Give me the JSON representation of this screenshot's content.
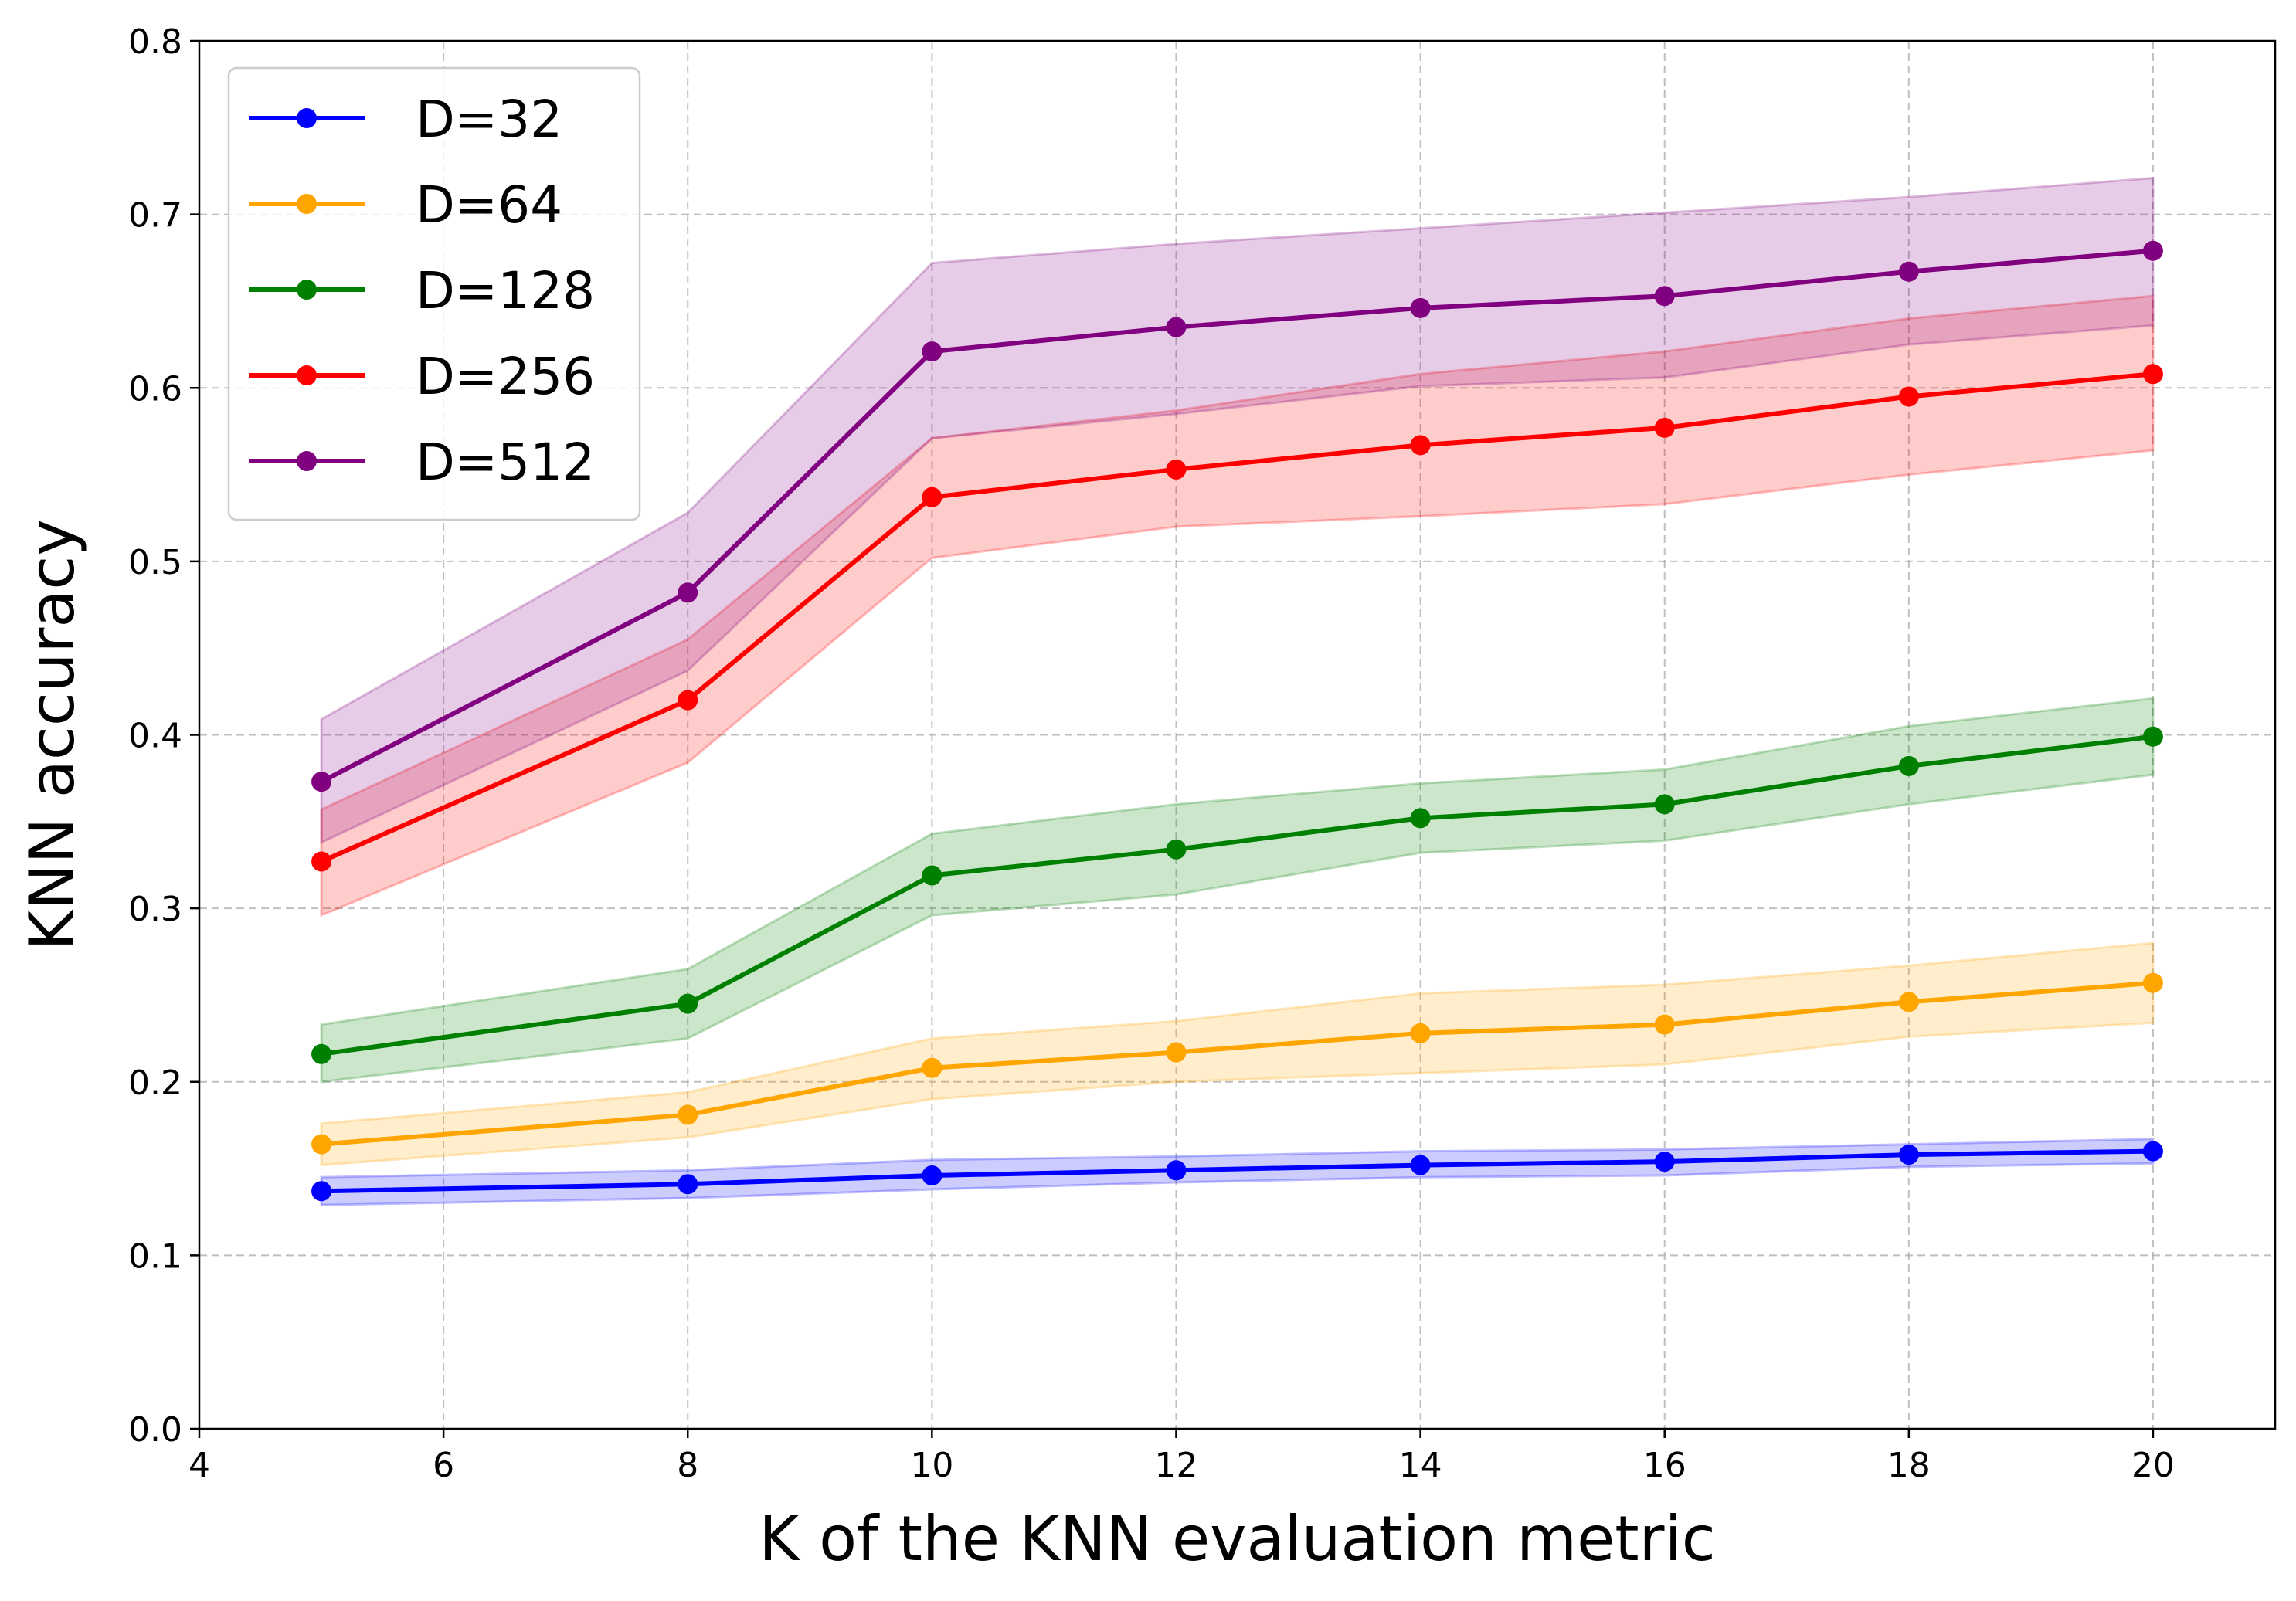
{
  "chart_data": {
    "type": "line",
    "title": "",
    "xlabel": "K of the KNN evaluation metric",
    "ylabel": "KNN accuracy",
    "xlim": [
      4,
      21
    ],
    "ylim": [
      0.0,
      0.8
    ],
    "x_ticks": [
      "4",
      "6",
      "8",
      "10",
      "12",
      "14",
      "16",
      "18",
      "20"
    ],
    "y_ticks": [
      "0.0",
      "0.1",
      "0.2",
      "0.3",
      "0.4",
      "0.5",
      "0.6",
      "0.7",
      "0.8"
    ],
    "grid": true,
    "legend_position": "top-left",
    "x": [
      5,
      8,
      10,
      12,
      14,
      16,
      18,
      20
    ],
    "series": [
      {
        "name": "D=32",
        "color": "#0000ff",
        "values": [
          0.137,
          0.141,
          0.146,
          0.149,
          0.152,
          0.154,
          0.158,
          0.16
        ],
        "lower": [
          0.129,
          0.133,
          0.138,
          0.142,
          0.145,
          0.146,
          0.151,
          0.153
        ],
        "upper": [
          0.145,
          0.149,
          0.155,
          0.157,
          0.16,
          0.161,
          0.164,
          0.167
        ]
      },
      {
        "name": "D=64",
        "color": "#ffa500",
        "values": [
          0.164,
          0.181,
          0.208,
          0.217,
          0.228,
          0.233,
          0.246,
          0.257
        ],
        "lower": [
          0.152,
          0.168,
          0.19,
          0.2,
          0.205,
          0.21,
          0.226,
          0.234
        ],
        "upper": [
          0.176,
          0.194,
          0.225,
          0.235,
          0.251,
          0.256,
          0.267,
          0.28
        ]
      },
      {
        "name": "D=128",
        "color": "#008000",
        "values": [
          0.216,
          0.245,
          0.319,
          0.334,
          0.352,
          0.36,
          0.382,
          0.399
        ],
        "lower": [
          0.2,
          0.225,
          0.296,
          0.308,
          0.332,
          0.339,
          0.36,
          0.377
        ],
        "upper": [
          0.233,
          0.265,
          0.343,
          0.36,
          0.372,
          0.38,
          0.405,
          0.421
        ]
      },
      {
        "name": "D=256",
        "color": "#ff0000",
        "values": [
          0.327,
          0.42,
          0.537,
          0.553,
          0.567,
          0.577,
          0.595,
          0.608
        ],
        "lower": [
          0.296,
          0.384,
          0.502,
          0.52,
          0.526,
          0.533,
          0.55,
          0.564
        ],
        "upper": [
          0.357,
          0.455,
          0.571,
          0.587,
          0.608,
          0.621,
          0.64,
          0.653
        ]
      },
      {
        "name": "D=512",
        "color": "#800080",
        "values": [
          0.373,
          0.482,
          0.621,
          0.635,
          0.646,
          0.653,
          0.667,
          0.679
        ],
        "lower": [
          0.338,
          0.437,
          0.571,
          0.585,
          0.601,
          0.606,
          0.625,
          0.636
        ],
        "upper": [
          0.409,
          0.528,
          0.672,
          0.683,
          0.692,
          0.701,
          0.71,
          0.721
        ]
      }
    ]
  }
}
